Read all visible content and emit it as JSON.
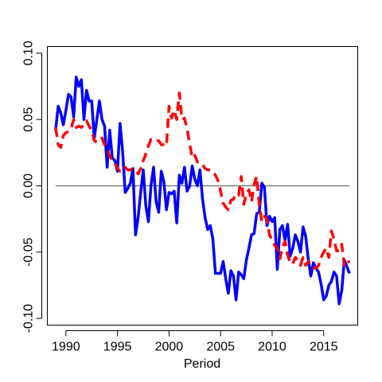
{
  "chart_data": {
    "type": "line",
    "title": "",
    "xlabel": "Period",
    "ylabel": "",
    "xlim": [
      1988.2,
      2018.3
    ],
    "ylim": [
      -0.105,
      0.105
    ],
    "xticks": [
      1990,
      1995,
      2000,
      2005,
      2010,
      2015
    ],
    "xtick_labels": [
      "1990",
      "1995",
      "2000",
      "2005",
      "2010",
      "2015"
    ],
    "yticks": [
      -0.1,
      -0.05,
      0.0,
      0.05,
      0.1
    ],
    "ytick_labels": [
      "-0.10",
      "-0.05",
      "0.00",
      "0.05",
      "0.10"
    ],
    "reference_line": {
      "y": 0.0,
      "x_from": 1989.0,
      "x_to": 2017.5,
      "color": "#555555"
    },
    "grid": false,
    "series": [
      {
        "color": "#0000ff",
        "line_style": "solid",
        "x": [
          1989.0,
          1989.25,
          1989.5,
          1989.75,
          1990.0,
          1990.25,
          1990.5,
          1990.75,
          1991.0,
          1991.25,
          1991.5,
          1991.75,
          1992.0,
          1992.25,
          1992.5,
          1992.75,
          1993.0,
          1993.25,
          1993.5,
          1993.75,
          1994.0,
          1994.25,
          1994.5,
          1994.75,
          1995.0,
          1995.25,
          1995.5,
          1995.75,
          1996.0,
          1996.25,
          1996.5,
          1996.75,
          1997.0,
          1997.25,
          1997.5,
          1997.75,
          1998.0,
          1998.25,
          1998.5,
          1998.75,
          1999.0,
          1999.25,
          1999.5,
          1999.75,
          2000.0,
          2000.25,
          2000.5,
          2000.75,
          2001.0,
          2001.25,
          2001.5,
          2001.75,
          2002.0,
          2002.25,
          2002.5,
          2002.75,
          2003.0,
          2003.25,
          2003.5,
          2003.75,
          2004.0,
          2004.25,
          2004.5,
          2004.75,
          2005.0,
          2005.25,
          2005.5,
          2005.75,
          2006.0,
          2006.25,
          2006.5,
          2006.75,
          2007.0,
          2007.25,
          2007.5,
          2007.75,
          2008.0,
          2008.25,
          2008.5,
          2008.75,
          2009.0,
          2009.25,
          2009.5,
          2009.75,
          2010.0,
          2010.25,
          2010.5,
          2010.75,
          2011.0,
          2011.25,
          2011.5,
          2011.75,
          2012.0,
          2012.25,
          2012.5,
          2012.75,
          2013.0,
          2013.25,
          2013.5,
          2013.75,
          2014.0,
          2014.25,
          2014.5,
          2014.75,
          2015.0,
          2015.25,
          2015.5,
          2015.75,
          2016.0,
          2016.25,
          2016.5,
          2016.75,
          2017.0,
          2017.25,
          2017.5
        ],
        "y": [
          0.042,
          0.06,
          0.055,
          0.046,
          0.057,
          0.069,
          0.067,
          0.052,
          0.082,
          0.075,
          0.08,
          0.05,
          0.072,
          0.064,
          0.064,
          0.036,
          0.05,
          0.064,
          0.05,
          0.045,
          0.014,
          0.042,
          0.021,
          0.019,
          0.011,
          0.047,
          0.026,
          -0.005,
          -0.002,
          0.002,
          0.013,
          -0.037,
          -0.024,
          -0.005,
          0.012,
          -0.015,
          -0.027,
          0.0,
          0.014,
          -0.012,
          -0.02,
          0.011,
          0.003,
          -0.018,
          -0.005,
          -0.006,
          -0.004,
          -0.028,
          0.008,
          0.002,
          0.014,
          -0.004,
          0.0,
          0.015,
          0.005,
          0.0,
          0.012,
          -0.01,
          -0.024,
          -0.033,
          -0.03,
          -0.04,
          -0.066,
          -0.066,
          -0.066,
          -0.057,
          -0.07,
          -0.081,
          -0.064,
          -0.068,
          -0.086,
          -0.065,
          -0.067,
          -0.07,
          -0.056,
          -0.047,
          -0.037,
          -0.036,
          -0.021,
          -0.02,
          0.002,
          -0.001,
          -0.03,
          -0.023,
          -0.027,
          -0.024,
          -0.063,
          -0.033,
          -0.03,
          -0.041,
          -0.029,
          -0.053,
          -0.047,
          -0.037,
          -0.042,
          -0.05,
          -0.031,
          -0.038,
          -0.055,
          -0.068,
          -0.058,
          -0.062,
          -0.065,
          -0.074,
          -0.086,
          -0.083,
          -0.075,
          -0.072,
          -0.065,
          -0.068,
          -0.089,
          -0.079,
          -0.056,
          -0.061,
          -0.066
        ]
      },
      {
        "color": "#ff0000",
        "line_style": "dashed",
        "x": [
          1989.0,
          1989.25,
          1989.5,
          1989.75,
          1990.0,
          1990.25,
          1990.5,
          1990.75,
          1991.0,
          1991.25,
          1991.5,
          1991.75,
          1992.0,
          1992.25,
          1992.5,
          1992.75,
          1993.0,
          1993.25,
          1993.5,
          1993.75,
          1994.0,
          1994.25,
          1994.5,
          1994.75,
          1995.0,
          1995.25,
          1995.5,
          1995.75,
          1996.0,
          1996.25,
          1996.5,
          1996.75,
          1997.0,
          1997.25,
          1997.5,
          1997.75,
          1998.0,
          1998.25,
          1998.5,
          1998.75,
          1999.0,
          1999.25,
          1999.5,
          1999.75,
          2000.0,
          2000.25,
          2000.5,
          2000.75,
          2001.0,
          2001.25,
          2001.5,
          2001.75,
          2002.0,
          2002.25,
          2002.5,
          2002.75,
          2003.0,
          2003.25,
          2003.5,
          2003.75,
          2004.0,
          2004.25,
          2004.5,
          2004.75,
          2005.0,
          2005.25,
          2005.5,
          2005.75,
          2006.0,
          2006.25,
          2006.5,
          2006.75,
          2007.0,
          2007.25,
          2007.5,
          2007.75,
          2008.0,
          2008.25,
          2008.5,
          2008.75,
          2009.0,
          2009.25,
          2009.5,
          2009.75,
          2010.0,
          2010.25,
          2010.5,
          2010.75,
          2011.0,
          2011.25,
          2011.5,
          2011.75,
          2012.0,
          2012.25,
          2012.5,
          2012.75,
          2013.0,
          2013.25,
          2013.5,
          2013.75,
          2014.0,
          2014.25,
          2014.5,
          2014.75,
          2015.0,
          2015.25,
          2015.5,
          2015.75,
          2016.0,
          2016.25,
          2016.5,
          2016.75,
          2017.0,
          2017.25,
          2017.5
        ],
        "y": [
          0.044,
          0.031,
          0.029,
          0.038,
          0.04,
          0.041,
          0.043,
          0.05,
          0.044,
          0.045,
          0.044,
          0.046,
          0.049,
          0.045,
          0.042,
          0.034,
          0.033,
          0.034,
          0.036,
          0.031,
          0.028,
          0.022,
          0.02,
          0.017,
          0.013,
          0.011,
          0.012,
          0.014,
          0.012,
          0.012,
          0.013,
          0.012,
          0.009,
          0.013,
          0.019,
          0.024,
          0.03,
          0.035,
          0.034,
          0.034,
          0.034,
          0.031,
          0.031,
          0.03,
          0.06,
          0.051,
          0.057,
          0.05,
          0.07,
          0.05,
          0.051,
          0.043,
          0.032,
          0.021,
          0.023,
          0.018,
          0.018,
          0.016,
          0.013,
          0.012,
          0.012,
          0.011,
          0.008,
          0.004,
          -0.004,
          -0.013,
          -0.016,
          -0.018,
          -0.011,
          -0.01,
          -0.006,
          -0.007,
          0.007,
          -0.014,
          -0.006,
          -0.003,
          -0.012,
          0.001,
          0.007,
          -0.014,
          -0.027,
          -0.023,
          -0.025,
          -0.037,
          -0.041,
          -0.045,
          -0.047,
          -0.055,
          -0.046,
          -0.042,
          -0.052,
          -0.058,
          -0.059,
          -0.054,
          -0.056,
          -0.06,
          -0.054,
          -0.06,
          -0.057,
          -0.059,
          -0.062,
          -0.062,
          -0.06,
          -0.054,
          -0.05,
          -0.047,
          -0.054,
          -0.034,
          -0.04,
          -0.049,
          -0.049,
          -0.044,
          -0.06,
          -0.056,
          -0.058
        ]
      }
    ]
  }
}
